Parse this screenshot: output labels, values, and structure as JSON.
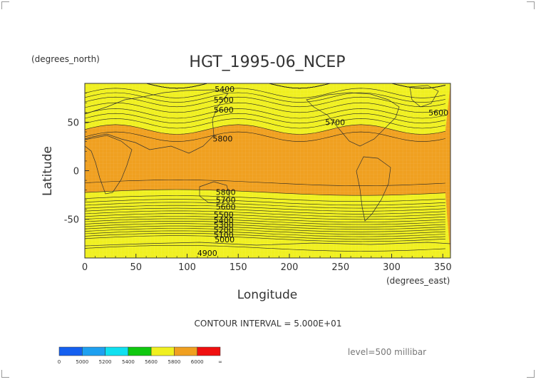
{
  "chart_data": {
    "type": "heatmap",
    "title": "HGT_1995-06_NCEP",
    "xlabel": "Longitude",
    "ylabel": "Latitude",
    "x_units": "(degrees_east)",
    "y_units": "(degrees_north)",
    "xlim": [
      0,
      357.5
    ],
    "ylim": [
      -90,
      90
    ],
    "x_ticks": [
      "0",
      "50",
      "100",
      "150",
      "200",
      "250",
      "300",
      "350"
    ],
    "y_ticks": [
      "50",
      "0",
      "-50"
    ],
    "contour_interval_text": "CONTOUR INTERVAL = 5.000E+01",
    "level_text": "level=500 millibar",
    "colorbar": {
      "labels": [
        "0",
        "5000",
        "5200",
        "5400",
        "5600",
        "5800",
        "6000",
        "∞"
      ],
      "colors": [
        "#1560f0",
        "#1ea0f0",
        "#10e0f0",
        "#10c810",
        "#f0f020",
        "#f0a020",
        "#f01010"
      ]
    },
    "zonal_profile": [
      {
        "lat": 90,
        "hgt": 5420
      },
      {
        "lat": 80,
        "hgt": 5450
      },
      {
        "lat": 70,
        "hgt": 5560
      },
      {
        "lat": 60,
        "hgt": 5640
      },
      {
        "lat": 50,
        "hgt": 5740
      },
      {
        "lat": 40,
        "hgt": 5820
      },
      {
        "lat": 30,
        "hgt": 5880
      },
      {
        "lat": 20,
        "hgt": 5880
      },
      {
        "lat": 10,
        "hgt": 5870
      },
      {
        "lat": 0,
        "hgt": 5860
      },
      {
        "lat": -10,
        "hgt": 5860
      },
      {
        "lat": -20,
        "hgt": 5820
      },
      {
        "lat": -30,
        "hgt": 5740
      },
      {
        "lat": -40,
        "hgt": 5580
      },
      {
        "lat": -50,
        "hgt": 5400
      },
      {
        "lat": -60,
        "hgt": 5200
      },
      {
        "lat": -70,
        "hgt": 5000
      },
      {
        "lat": -80,
        "hgt": 4950
      },
      {
        "lat": -90,
        "hgt": 4900
      }
    ],
    "contour_labels": [
      {
        "text": "5400",
        "lon": 127,
        "lat": 84
      },
      {
        "text": "5500",
        "lon": 126,
        "lat": 73
      },
      {
        "text": "5600",
        "lon": 126,
        "lat": 63
      },
      {
        "text": "5700",
        "lon": 235,
        "lat": 50
      },
      {
        "text": "5600",
        "lon": 336,
        "lat": 60
      },
      {
        "text": "5800",
        "lon": 125,
        "lat": 33
      },
      {
        "text": "5800",
        "lon": 128,
        "lat": -22
      },
      {
        "text": "5700",
        "lon": 128,
        "lat": -30
      },
      {
        "text": "5600",
        "lon": 128,
        "lat": -37
      },
      {
        "text": "5500",
        "lon": 126,
        "lat": -45
      },
      {
        "text": "5400",
        "lon": 126,
        "lat": -51
      },
      {
        "text": "5300",
        "lon": 126,
        "lat": -56
      },
      {
        "text": "5200",
        "lon": 126,
        "lat": -61
      },
      {
        "text": "5100",
        "lon": 126,
        "lat": -66
      },
      {
        "text": "5000",
        "lon": 127,
        "lat": -71
      },
      {
        "text": "4900",
        "lon": 110,
        "lat": -85
      }
    ]
  }
}
